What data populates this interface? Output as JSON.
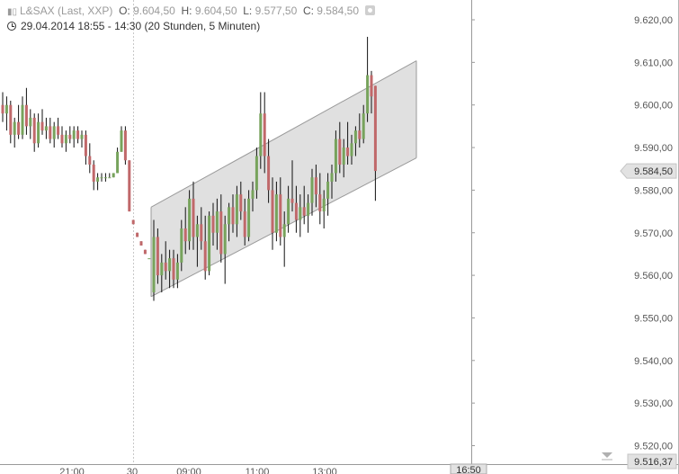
{
  "header": {
    "instrument": "L&SAX (Last, XXP)",
    "ohlc": [
      {
        "label": "O:",
        "value": "9.604,50"
      },
      {
        "label": "H:",
        "value": "9.604,50"
      },
      {
        "label": "L:",
        "value": "9.577,50"
      },
      {
        "label": "C:",
        "value": "9.584,50"
      }
    ],
    "period": "29.04.2014 18:55 - 14:30 (20 Stunden, 5 Minuten)"
  },
  "chart_data": {
    "type": "candlestick",
    "ylim": [
      9513,
      9625
    ],
    "y_ticks": [
      "9.520,00",
      "9.530,00",
      "9.540,00",
      "9.550,00",
      "9.560,00",
      "9.570,00",
      "9.580,00",
      "9.590,00",
      "9.600,00",
      "9.610,00",
      "9.620,00"
    ],
    "x_tick_labels": [
      "21:00",
      "30",
      "09:00",
      "11:00",
      "13:00"
    ],
    "last_price_label": "9.584,50",
    "last_price": 9584.5,
    "lower_value_label": "9.516,37",
    "lower_value": 9516.37,
    "cursor_time_label": "16:50",
    "candles": [
      {
        "o": 9600,
        "h": 9603,
        "l": 9596,
        "c": 9598
      },
      {
        "o": 9598,
        "h": 9602,
        "l": 9594,
        "c": 9600
      },
      {
        "o": 9600,
        "h": 9601,
        "l": 9591,
        "c": 9593
      },
      {
        "o": 9593,
        "h": 9597,
        "l": 9590,
        "c": 9596
      },
      {
        "o": 9596,
        "h": 9600,
        "l": 9592,
        "c": 9593
      },
      {
        "o": 9593,
        "h": 9602,
        "l": 9592,
        "c": 9600
      },
      {
        "o": 9600,
        "h": 9604,
        "l": 9593,
        "c": 9595
      },
      {
        "o": 9595,
        "h": 9599,
        "l": 9592,
        "c": 9597
      },
      {
        "o": 9597,
        "h": 9598,
        "l": 9589,
        "c": 9591
      },
      {
        "o": 9591,
        "h": 9598,
        "l": 9590,
        "c": 9596
      },
      {
        "o": 9596,
        "h": 9599,
        "l": 9593,
        "c": 9594
      },
      {
        "o": 9594,
        "h": 9597,
        "l": 9592,
        "c": 9595
      },
      {
        "o": 9595,
        "h": 9597,
        "l": 9591,
        "c": 9592
      },
      {
        "o": 9592,
        "h": 9596,
        "l": 9590,
        "c": 9595
      },
      {
        "o": 9595,
        "h": 9597,
        "l": 9592,
        "c": 9593
      },
      {
        "o": 9593,
        "h": 9595,
        "l": 9590,
        "c": 9591
      },
      {
        "o": 9591,
        "h": 9594,
        "l": 9589,
        "c": 9593
      },
      {
        "o": 9593,
        "h": 9595,
        "l": 9591,
        "c": 9592
      },
      {
        "o": 9592,
        "h": 9595,
        "l": 9590,
        "c": 9594
      },
      {
        "o": 9594,
        "h": 9595,
        "l": 9591,
        "c": 9592
      },
      {
        "o": 9592,
        "h": 9594,
        "l": 9590,
        "c": 9593
      },
      {
        "o": 9593,
        "h": 9594,
        "l": 9586,
        "c": 9588
      },
      {
        "o": 9588,
        "h": 9591,
        "l": 9584,
        "c": 9586
      },
      {
        "o": 9586,
        "h": 9587,
        "l": 9580,
        "c": 9582
      },
      {
        "o": 9582,
        "h": 9584,
        "l": 9580,
        "c": 9583
      },
      {
        "o": 9583,
        "h": 9584,
        "l": 9582,
        "c": 9583
      },
      {
        "o": 9583,
        "h": 9584,
        "l": 9582,
        "c": 9583
      },
      {
        "o": 9583,
        "h": 9584,
        "l": 9583,
        "c": 9583
      },
      {
        "o": 9583,
        "h": 9584,
        "l": 9583,
        "c": 9584
      },
      {
        "o": 9584,
        "h": 9590,
        "l": 9584,
        "c": 9589
      },
      {
        "o": 9589,
        "h": 9595,
        "l": 9589,
        "c": 9594
      },
      {
        "o": 9594,
        "h": 9595,
        "l": 9586,
        "c": 9587
      },
      {
        "o": 9587,
        "h": 9587,
        "l": 9575,
        "c": 9575
      },
      {
        "o": 9573,
        "h": 9573,
        "l": 9572,
        "c": 9572
      },
      {
        "o": 9570,
        "h": 9570,
        "l": 9569,
        "c": 9569
      },
      {
        "o": 9568,
        "h": 9568,
        "l": 9567,
        "c": 9567
      },
      {
        "o": 9566,
        "h": 9566,
        "l": 9565,
        "c": 9565
      },
      {
        "o": 9564,
        "h": 9564,
        "l": 9564,
        "c": 9564
      },
      {
        "o": 9556,
        "h": 9573,
        "l": 9554,
        "c": 9569
      },
      {
        "o": 9569,
        "h": 9571,
        "l": 9558,
        "c": 9560
      },
      {
        "o": 9560,
        "h": 9565,
        "l": 9556,
        "c": 9563
      },
      {
        "o": 9563,
        "h": 9568,
        "l": 9559,
        "c": 9561
      },
      {
        "o": 9561,
        "h": 9566,
        "l": 9557,
        "c": 9564
      },
      {
        "o": 9564,
        "h": 9566,
        "l": 9557,
        "c": 9559
      },
      {
        "o": 9559,
        "h": 9565,
        "l": 9557,
        "c": 9563
      },
      {
        "o": 9563,
        "h": 9573,
        "l": 9561,
        "c": 9571
      },
      {
        "o": 9571,
        "h": 9576,
        "l": 9565,
        "c": 9568
      },
      {
        "o": 9568,
        "h": 9580,
        "l": 9566,
        "c": 9578
      },
      {
        "o": 9578,
        "h": 9582,
        "l": 9566,
        "c": 9569
      },
      {
        "o": 9569,
        "h": 9574,
        "l": 9562,
        "c": 9572
      },
      {
        "o": 9572,
        "h": 9576,
        "l": 9566,
        "c": 9568
      },
      {
        "o": 9568,
        "h": 9574,
        "l": 9559,
        "c": 9561
      },
      {
        "o": 9561,
        "h": 9575,
        "l": 9560,
        "c": 9574
      },
      {
        "o": 9574,
        "h": 9577,
        "l": 9567,
        "c": 9570
      },
      {
        "o": 9570,
        "h": 9578,
        "l": 9566,
        "c": 9575
      },
      {
        "o": 9575,
        "h": 9579,
        "l": 9563,
        "c": 9565
      },
      {
        "o": 9565,
        "h": 9574,
        "l": 9558,
        "c": 9572
      },
      {
        "o": 9572,
        "h": 9577,
        "l": 9568,
        "c": 9576
      },
      {
        "o": 9576,
        "h": 9579,
        "l": 9570,
        "c": 9572
      },
      {
        "o": 9572,
        "h": 9581,
        "l": 9569,
        "c": 9579
      },
      {
        "o": 9579,
        "h": 9582,
        "l": 9573,
        "c": 9575
      },
      {
        "o": 9575,
        "h": 9578,
        "l": 9567,
        "c": 9569
      },
      {
        "o": 9569,
        "h": 9580,
        "l": 9568,
        "c": 9578
      },
      {
        "o": 9578,
        "h": 9582,
        "l": 9575,
        "c": 9580
      },
      {
        "o": 9580,
        "h": 9590,
        "l": 9578,
        "c": 9588
      },
      {
        "o": 9588,
        "h": 9603,
        "l": 9585,
        "c": 9598
      },
      {
        "o": 9598,
        "h": 9603,
        "l": 9584,
        "c": 9588
      },
      {
        "o": 9588,
        "h": 9592,
        "l": 9577,
        "c": 9580
      },
      {
        "o": 9580,
        "h": 9583,
        "l": 9566,
        "c": 9570
      },
      {
        "o": 9570,
        "h": 9582,
        "l": 9568,
        "c": 9579
      },
      {
        "o": 9579,
        "h": 9583,
        "l": 9567,
        "c": 9569
      },
      {
        "o": 9569,
        "h": 9575,
        "l": 9562,
        "c": 9572
      },
      {
        "o": 9572,
        "h": 9581,
        "l": 9570,
        "c": 9578
      },
      {
        "o": 9578,
        "h": 9587,
        "l": 9575,
        "c": 9577
      },
      {
        "o": 9577,
        "h": 9581,
        "l": 9570,
        "c": 9573
      },
      {
        "o": 9573,
        "h": 9579,
        "l": 9569,
        "c": 9576
      },
      {
        "o": 9576,
        "h": 9581,
        "l": 9572,
        "c": 9574
      },
      {
        "o": 9574,
        "h": 9579,
        "l": 9570,
        "c": 9577
      },
      {
        "o": 9577,
        "h": 9585,
        "l": 9574,
        "c": 9583
      },
      {
        "o": 9583,
        "h": 9586,
        "l": 9576,
        "c": 9579
      },
      {
        "o": 9579,
        "h": 9584,
        "l": 9572,
        "c": 9575
      },
      {
        "o": 9575,
        "h": 9580,
        "l": 9571,
        "c": 9578
      },
      {
        "o": 9578,
        "h": 9584,
        "l": 9574,
        "c": 9582
      },
      {
        "o": 9582,
        "h": 9586,
        "l": 9578,
        "c": 9584
      },
      {
        "o": 9584,
        "h": 9594,
        "l": 9582,
        "c": 9592
      },
      {
        "o": 9592,
        "h": 9596,
        "l": 9584,
        "c": 9586
      },
      {
        "o": 9586,
        "h": 9592,
        "l": 9583,
        "c": 9590
      },
      {
        "o": 9590,
        "h": 9596,
        "l": 9586,
        "c": 9588
      },
      {
        "o": 9588,
        "h": 9593,
        "l": 9586,
        "c": 9591
      },
      {
        "o": 9591,
        "h": 9595,
        "l": 9588,
        "c": 9594
      },
      {
        "o": 9594,
        "h": 9598,
        "l": 9590,
        "c": 9592
      },
      {
        "o": 9592,
        "h": 9600,
        "l": 9591,
        "c": 9598
      },
      {
        "o": 9598,
        "h": 9616,
        "l": 9596,
        "c": 9607
      },
      {
        "o": 9607,
        "h": 9608,
        "l": 9598,
        "c": 9602
      },
      {
        "o": 9604.5,
        "h": 9604.5,
        "l": 9577.5,
        "c": 9584.5
      }
    ],
    "channel": {
      "x_start_candle": 38,
      "x_end_candle": 93,
      "lower_start": 9555,
      "lower_end": 9582,
      "upper_start": 9576,
      "upper_end": 9604.5
    },
    "colors": {
      "up": "#77a35c",
      "down": "#c0686a",
      "channel_fill": "#e0e0e0",
      "channel_line": "#9a9a9a"
    }
  }
}
